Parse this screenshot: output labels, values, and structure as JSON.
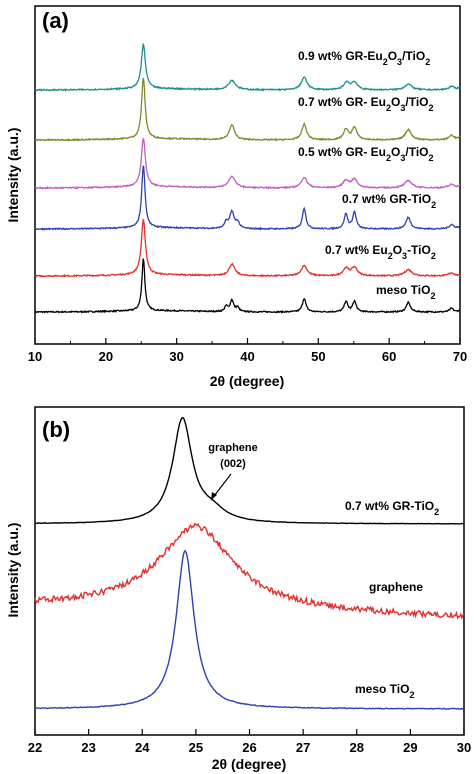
{
  "chart_data": [
    {
      "panel": "(a)",
      "type": "line",
      "xlabel": "2θ (degree)",
      "ylabel": "Intensity (a.u.)",
      "xlim": [
        10,
        70
      ],
      "xticks": [
        10,
        20,
        30,
        40,
        50,
        60,
        70
      ],
      "series": [
        {
          "name": "0.9 wt% GR-Eu2O3/TiO2",
          "color": "#20908a",
          "offset": 5,
          "peaks": [
            [
              25.3,
              4.2,
              0.35
            ],
            [
              37.8,
              0.9,
              0.6
            ],
            [
              48.0,
              1.2,
              0.5
            ],
            [
              54.0,
              0.7,
              0.5
            ],
            [
              55.1,
              0.7,
              0.5
            ],
            [
              62.7,
              0.55,
              0.6
            ],
            [
              68.8,
              0.3,
              0.5
            ],
            [
              70.3,
              0.3,
              0.5
            ]
          ]
        },
        {
          "name": "0.7 wt% GR- Eu2O3/TiO2",
          "color": "#7f8a2a",
          "offset": 4,
          "peaks": [
            [
              25.3,
              5.8,
              0.3
            ],
            [
              37.8,
              1.4,
              0.45
            ],
            [
              48.0,
              1.5,
              0.4
            ],
            [
              53.9,
              1.0,
              0.4
            ],
            [
              55.1,
              1.2,
              0.4
            ],
            [
              62.7,
              1.0,
              0.5
            ],
            [
              68.8,
              0.45,
              0.4
            ],
            [
              70.3,
              0.45,
              0.4
            ]
          ]
        },
        {
          "name": "0.5 wt% GR- Eu2O3/TiO2",
          "color": "#c060c0",
          "offset": 3,
          "peaks": [
            [
              25.3,
              4.6,
              0.35
            ],
            [
              37.8,
              1.1,
              0.55
            ],
            [
              48.0,
              1.0,
              0.5
            ],
            [
              53.9,
              0.7,
              0.5
            ],
            [
              55.1,
              0.8,
              0.5
            ],
            [
              62.7,
              0.7,
              0.6
            ],
            [
              68.8,
              0.3,
              0.5
            ],
            [
              70.3,
              0.3,
              0.5
            ]
          ]
        },
        {
          "name": "0.7 wt% GR-TiO2",
          "color": "#3040b0",
          "offset": 2,
          "peaks": [
            [
              25.3,
              6.0,
              0.28
            ],
            [
              37.0,
              0.6,
              0.3
            ],
            [
              37.8,
              1.6,
              0.35
            ],
            [
              38.6,
              0.6,
              0.3
            ],
            [
              48.0,
              2.0,
              0.3
            ],
            [
              53.9,
              1.4,
              0.3
            ],
            [
              55.1,
              1.6,
              0.3
            ],
            [
              62.7,
              1.1,
              0.4
            ],
            [
              68.8,
              0.4,
              0.4
            ],
            [
              70.3,
              0.4,
              0.4
            ]
          ]
        },
        {
          "name": "0.7 wt% Eu2O3-TiO2",
          "color": "#e03030",
          "offset": 1,
          "peaks": [
            [
              25.3,
              5.2,
              0.35
            ],
            [
              37.8,
              1.1,
              0.5
            ],
            [
              48.0,
              1.0,
              0.5
            ],
            [
              53.9,
              0.7,
              0.5
            ],
            [
              55.1,
              0.8,
              0.5
            ],
            [
              62.7,
              0.6,
              0.6
            ],
            [
              68.8,
              0.3,
              0.5
            ]
          ]
        },
        {
          "name": "meso TiO2",
          "color": "#000000",
          "offset": 0,
          "peaks": [
            [
              25.3,
              5.0,
              0.25
            ],
            [
              37.0,
              0.5,
              0.25
            ],
            [
              37.8,
              1.1,
              0.3
            ],
            [
              38.6,
              0.4,
              0.25
            ],
            [
              48.0,
              1.3,
              0.3
            ],
            [
              53.9,
              1.0,
              0.3
            ],
            [
              55.1,
              1.0,
              0.3
            ],
            [
              62.7,
              0.9,
              0.35
            ],
            [
              68.8,
              0.35,
              0.3
            ],
            [
              70.3,
              0.35,
              0.3
            ]
          ]
        }
      ]
    },
    {
      "panel": "(b)",
      "type": "line",
      "xlabel": "2θ (degree)",
      "ylabel": "Intensity (a.u.)",
      "xlim": [
        22,
        30
      ],
      "xticks": [
        22,
        23,
        24,
        25,
        26,
        27,
        28,
        29,
        30
      ],
      "annotation": {
        "text_line1": "graphene",
        "text_line2": "(002)",
        "x": 25.3
      },
      "series": [
        {
          "name": "0.7 wt% GR-TiO2",
          "color": "#000000",
          "baseline": 0.0,
          "peaks": [
            [
              24.75,
              1.0,
              0.22
            ],
            [
              25.3,
              0.1,
              0.3
            ]
          ]
        },
        {
          "name": "graphene",
          "color": "#e03030",
          "baseline": 0.0,
          "peaks": [
            [
              25.0,
              1.0,
              0.85
            ]
          ]
        },
        {
          "name": "meso TiO2",
          "color": "#3040b0",
          "baseline": 0.0,
          "peaks": [
            [
              24.8,
              1.0,
              0.2
            ]
          ]
        }
      ]
    }
  ]
}
